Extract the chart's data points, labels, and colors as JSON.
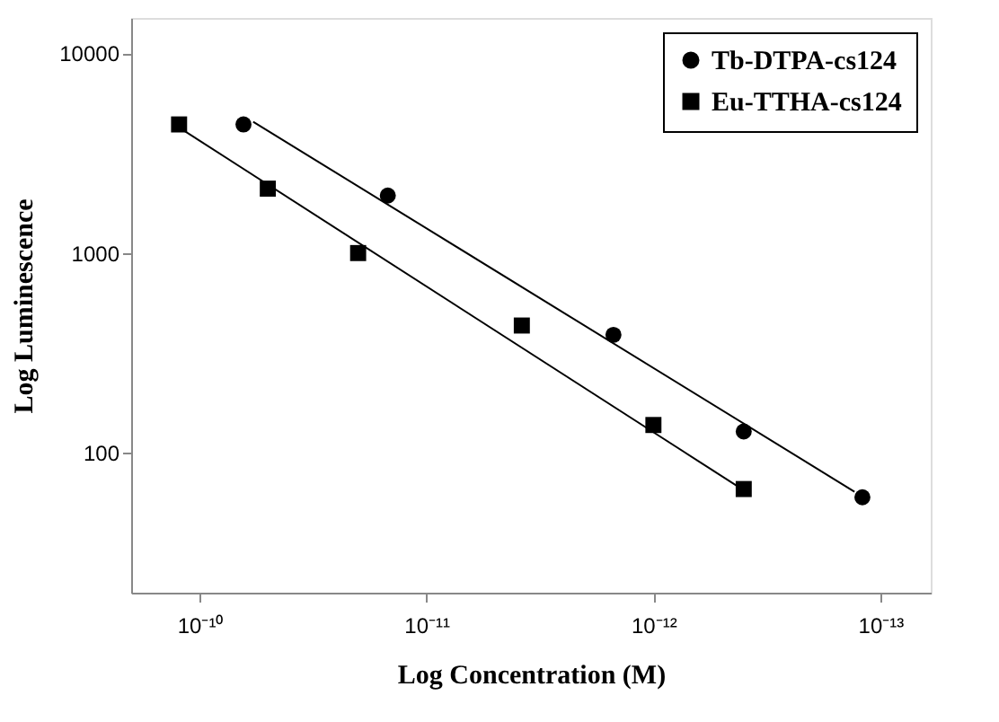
{
  "chart_data": {
    "type": "scatter",
    "xlabel": "Log Concentration (M)",
    "ylabel": "Log Luminescence",
    "log": "xy",
    "grid": false,
    "legend": "top right",
    "xlim": [
      2e-10,
      6e-14
    ],
    "xticks": [
      {
        "value": 1e-10,
        "label": "10⁻¹⁰"
      },
      {
        "value": 1e-11,
        "label": "10⁻¹¹"
      },
      {
        "value": 1e-12,
        "label": "10⁻¹²"
      },
      {
        "value": 1e-13,
        "label": "10⁻¹³"
      }
    ],
    "ylim": [
      20,
      15000
    ],
    "yticks": [
      100,
      1000,
      10000
    ],
    "series": [
      {
        "name": "Tb-DTPA-cs124",
        "color": "#000000",
        "marker": "circle",
        "x": [
          6.4e-11,
          1.48e-11,
          1.5e-12,
          4e-13,
          1.2e-13
        ],
        "values": [
          4400,
          1940,
          390,
          128,
          60
        ]
      },
      {
        "name": "Eu-TTHA-cs124",
        "color": "#000000",
        "marker": "square",
        "x": [
          1.23e-10,
          5e-11,
          2e-11,
          3.8e-12,
          1e-12,
          4e-13
        ],
        "values": [
          4400,
          2100,
          1000,
          434,
          138,
          66
        ]
      },
      {
        "type": "line",
        "color": "#000000",
        "x": [
          5.8e-11,
          1.3e-13
        ],
        "values": [
          4540,
          64
        ]
      },
      {
        "type": "line",
        "color": "#000000",
        "x": [
          1.16e-10,
          4.25e-13
        ],
        "values": [
          4070,
          68
        ]
      }
    ]
  }
}
